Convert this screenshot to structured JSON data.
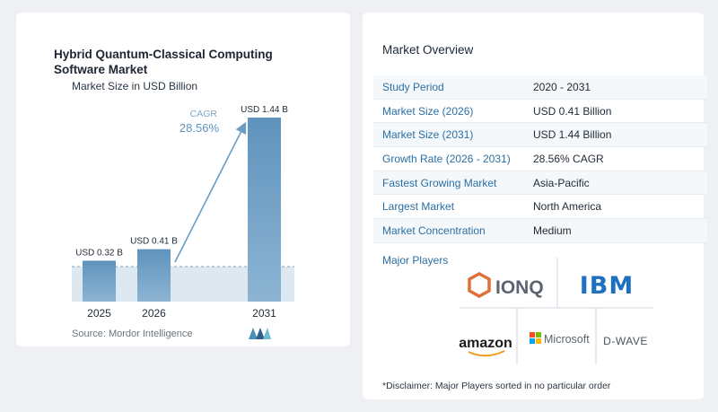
{
  "chart": {
    "title": "Hybrid Quantum-Classical Computing Software Market",
    "subtitle": "Market Size in USD Billion",
    "cagr_label": "CAGR",
    "cagr_value": "28.56%",
    "source": "Source:  Mordor Intelligence",
    "accent_color": "#5f93bd",
    "band_color": "#dde8f1"
  },
  "chart_data": {
    "type": "bar",
    "categories": [
      "2025",
      "2026",
      "2031"
    ],
    "values": [
      0.32,
      0.41,
      1.44
    ],
    "data_labels": [
      "USD 0.32 B",
      "USD 0.41 B",
      "USD 1.44 B"
    ],
    "title": "Hybrid Quantum-Classical Computing Software Market",
    "subtitle": "Market Size in USD Billion",
    "ylim": [
      0,
      1.44
    ],
    "grid": false
  },
  "overview": {
    "title": "Market Overview",
    "rows": [
      {
        "label": "Study Period",
        "value": "2020 - 2031"
      },
      {
        "label": "Market Size (2026)",
        "value": "USD 0.41 Billion"
      },
      {
        "label": "Market Size (2031)",
        "value": "USD 1.44 Billion"
      },
      {
        "label": "Growth Rate (2026 - 2031)",
        "value": "28.56% CAGR"
      },
      {
        "label": "Fastest Growing Market",
        "value": "Asia-Pacific"
      },
      {
        "label": "Largest Market",
        "value": "North America"
      },
      {
        "label": "Market Concentration",
        "value": "Medium"
      }
    ],
    "players_title": "Major Players",
    "players": [
      "IONQ",
      "IBM",
      "amazon",
      "Microsoft",
      "D-WAVE"
    ],
    "disclaimer": "*Disclaimer: Major Players sorted in no particular order"
  }
}
